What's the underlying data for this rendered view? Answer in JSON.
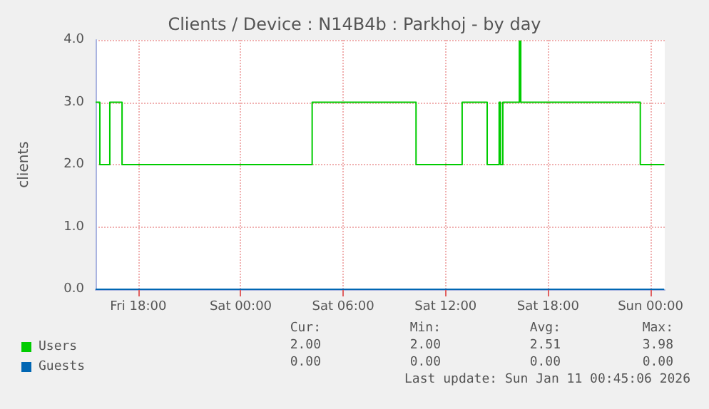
{
  "chart_data": {
    "type": "line",
    "title": "Clients / Device : N14B4b : Parkhoj - by day",
    "ylabel": "clients",
    "xlim": [
      "2026-01-09T15:30",
      "2026-01-11T00:50"
    ],
    "xticks": [
      {
        "value": "2026-01-09T18:00",
        "label": "Fri 18:00"
      },
      {
        "value": "2026-01-10T00:00",
        "label": "Sat 00:00"
      },
      {
        "value": "2026-01-10T06:00",
        "label": "Sat 06:00"
      },
      {
        "value": "2026-01-10T12:00",
        "label": "Sat 12:00"
      },
      {
        "value": "2026-01-10T18:00",
        "label": "Sat 18:00"
      },
      {
        "value": "2026-01-11T00:00",
        "label": "Sun 00:00"
      }
    ],
    "ylim": [
      0,
      4
    ],
    "yticks": [
      {
        "value": 0,
        "label": "0.0"
      },
      {
        "value": 1,
        "label": "1.0"
      },
      {
        "value": 2,
        "label": "2.0"
      },
      {
        "value": 3,
        "label": "3.0"
      },
      {
        "value": 4,
        "label": "4.0"
      }
    ],
    "grid": true,
    "marker": "none",
    "line_style": "solid",
    "legend": "bottom left",
    "series": [
      {
        "name": "Users",
        "color": "#00cc00",
        "x": [
          "2026-01-09T15:30",
          "2026-01-09T15:45",
          "2026-01-09T15:45",
          "2026-01-09T16:20",
          "2026-01-09T16:20",
          "2026-01-09T17:03",
          "2026-01-09T17:03",
          "2026-01-10T04:11",
          "2026-01-10T04:11",
          "2026-01-10T10:16",
          "2026-01-10T10:16",
          "2026-01-10T12:58",
          "2026-01-10T12:58",
          "2026-01-10T14:26",
          "2026-01-10T14:26",
          "2026-01-10T15:08",
          "2026-01-10T15:08",
          "2026-01-10T15:13",
          "2026-01-10T15:13",
          "2026-01-10T15:21",
          "2026-01-10T15:21",
          "2026-01-10T16:19",
          "2026-01-10T16:19",
          "2026-01-10T16:24",
          "2026-01-10T16:24",
          "2026-01-10T23:24",
          "2026-01-10T23:24",
          "2026-01-11T00:48"
        ],
        "values": [
          3,
          3,
          2,
          2,
          3,
          3,
          2,
          2,
          3,
          3,
          2,
          2,
          3,
          3,
          2,
          2,
          3,
          3,
          2,
          2,
          3,
          3,
          3.98,
          3.98,
          3,
          3,
          2,
          2
        ]
      },
      {
        "name": "Guests",
        "color": "#0066b3",
        "x": [
          "2026-01-09T15:30",
          "2026-01-11T00:48"
        ],
        "values": [
          0,
          0
        ]
      }
    ],
    "annotations": [
      "Cur:",
      "Min:",
      "Avg:",
      "Max:",
      "2.00",
      "2.00",
      "2.51",
      "3.98",
      "0.00",
      "0.00",
      "0.00",
      "0.00",
      "Last update: Sun Jan 11 00:45:06 2026"
    ]
  }
}
